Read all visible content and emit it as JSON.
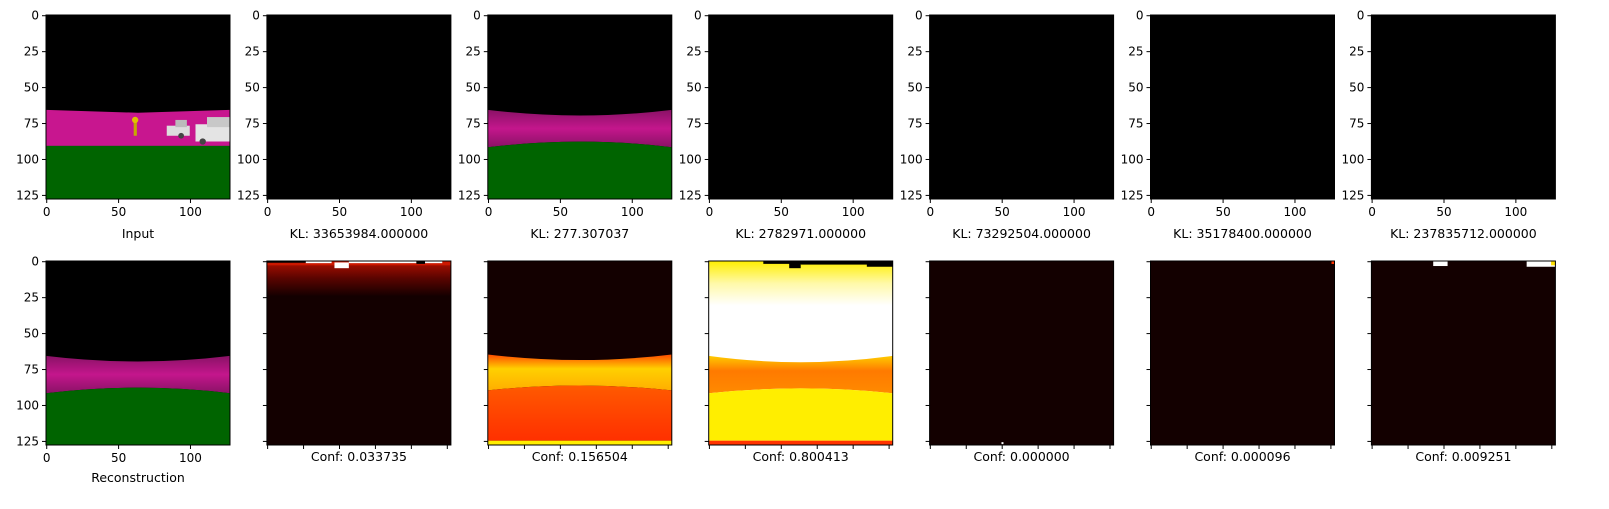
{
  "chart_data": {
    "type": "image_grid",
    "image_size": 128,
    "axis_ticks": [
      "0",
      "25",
      "50",
      "75",
      "100",
      "125"
    ],
    "x_ticks": [
      "0",
      "50",
      "100"
    ],
    "top_row": [
      {
        "kind": "input",
        "caption": "Input"
      },
      {
        "kind": "black",
        "caption": "KL: 33653984.000000",
        "kl": 33653984.0
      },
      {
        "kind": "recon",
        "caption": "KL: 277.307037",
        "kl": 277.307037
      },
      {
        "kind": "black",
        "caption": "KL: 2782971.000000",
        "kl": 2782971.0
      },
      {
        "kind": "black",
        "caption": "KL: 73292504.000000",
        "kl": 73292504.0
      },
      {
        "kind": "black",
        "caption": "KL: 35178400.000000",
        "kl": 35178400.0
      },
      {
        "kind": "black",
        "caption": "KL: 237835712.000000",
        "kl": 237835712.0
      }
    ],
    "bottom_row": [
      {
        "kind": "recon",
        "caption": "Reconstruction"
      },
      {
        "kind": "heat1",
        "caption": "Conf: 0.033735",
        "conf": 0.033735
      },
      {
        "kind": "heat2",
        "caption": "Conf: 0.156504",
        "conf": 0.156504
      },
      {
        "kind": "heat3",
        "caption": "Conf: 0.800413",
        "conf": 0.800413
      },
      {
        "kind": "heat4",
        "caption": "Conf: 0.000000",
        "conf": 0.0
      },
      {
        "kind": "heat5",
        "caption": "Conf: 0.000096",
        "conf": 9.6e-05
      },
      {
        "kind": "heat6",
        "caption": "Conf: 0.009251",
        "conf": 0.009251
      }
    ],
    "colors": {
      "sky": "#000000",
      "magenta": "#c8168f",
      "grass": "#006400",
      "heat_dark": "#130000",
      "heat_red": "#ff3300",
      "heat_orange": "#ff7700",
      "heat_yellow": "#ffee00",
      "heat_white": "#ffffff"
    }
  }
}
